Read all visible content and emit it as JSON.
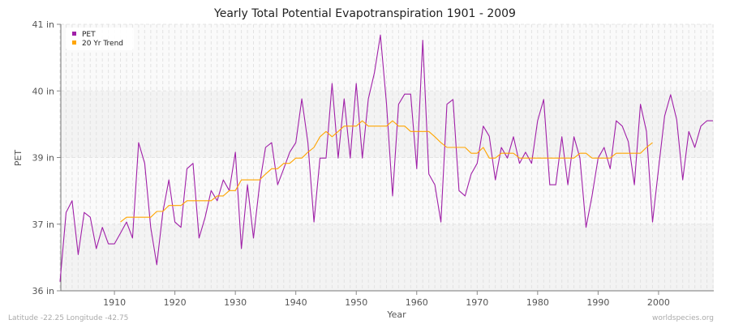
{
  "chart_data": {
    "type": "line",
    "title": "Yearly Total Potential Evapotranspiration 1901 - 2009",
    "xlabel": "Year",
    "ylabel": "PET",
    "xlim": [
      1901,
      2009
    ],
    "ylim": [
      36,
      41
    ],
    "x_ticks": [
      1910,
      1920,
      1930,
      1940,
      1950,
      1960,
      1970,
      1980,
      1990,
      2000
    ],
    "y_ticks": [
      {
        "value": 36,
        "label": "36 in"
      },
      {
        "value": 37.25,
        "label": "37 in"
      },
      {
        "value": 38.5,
        "label": "39 in"
      },
      {
        "value": 39.75,
        "label": "40 in"
      },
      {
        "value": 41,
        "label": "41 in"
      }
    ],
    "grid": true,
    "legend": "top-left",
    "series": [
      {
        "name": "PET",
        "color": "#a020a8",
        "x_start": 1901,
        "values": [
          36.17,
          37.47,
          37.69,
          36.68,
          37.47,
          37.38,
          36.79,
          37.19,
          36.88,
          36.88,
          37.08,
          37.29,
          36.99,
          38.78,
          38.39,
          37.19,
          36.49,
          37.47,
          38.08,
          37.29,
          37.19,
          38.29,
          38.39,
          36.99,
          37.38,
          37.88,
          37.69,
          38.08,
          37.88,
          38.6,
          36.79,
          37.99,
          36.99,
          37.99,
          38.69,
          38.78,
          37.99,
          38.29,
          38.6,
          38.78,
          39.6,
          38.78,
          37.29,
          38.49,
          38.49,
          39.89,
          38.49,
          39.6,
          38.49,
          39.89,
          38.49,
          39.6,
          40.09,
          40.8,
          39.51,
          37.78,
          39.5,
          39.69,
          39.69,
          38.29,
          40.7,
          38.19,
          37.99,
          37.29,
          39.5,
          39.59,
          37.88,
          37.78,
          38.19,
          38.39,
          39.09,
          38.9,
          38.08,
          38.69,
          38.49,
          38.89,
          38.39,
          38.6,
          38.39,
          39.19,
          39.59,
          37.99,
          37.99,
          38.89,
          37.99,
          38.89,
          38.49,
          37.19,
          37.78,
          38.49,
          38.69,
          38.29,
          39.19,
          39.09,
          38.8,
          37.99,
          39.5,
          38.99,
          37.29,
          38.29,
          39.28,
          39.68,
          39.21,
          38.08,
          38.99,
          38.69,
          39.09,
          39.19,
          39.19
        ]
      },
      {
        "name": "20 Yr Trend",
        "color": "#ffa500",
        "x_start": 1911,
        "values": [
          37.29,
          37.38,
          37.38,
          37.38,
          37.38,
          37.38,
          37.49,
          37.49,
          37.6,
          37.6,
          37.6,
          37.69,
          37.69,
          37.69,
          37.69,
          37.69,
          37.78,
          37.78,
          37.88,
          37.88,
          38.08,
          38.08,
          38.08,
          38.08,
          38.19,
          38.29,
          38.29,
          38.39,
          38.39,
          38.49,
          38.49,
          38.6,
          38.69,
          38.89,
          38.99,
          38.89,
          38.99,
          39.09,
          39.09,
          39.09,
          39.19,
          39.09,
          39.09,
          39.09,
          39.09,
          39.19,
          39.09,
          39.09,
          38.99,
          38.99,
          38.99,
          38.99,
          38.89,
          38.78,
          38.69,
          38.69,
          38.69,
          38.69,
          38.58,
          38.58,
          38.69,
          38.49,
          38.49,
          38.58,
          38.58,
          38.58,
          38.49,
          38.49,
          38.49,
          38.49,
          38.49,
          38.49,
          38.49,
          38.49,
          38.49,
          38.49,
          38.58,
          38.58,
          38.49,
          38.49,
          38.49,
          38.49,
          38.58,
          38.58,
          38.58,
          38.58,
          38.58,
          38.69,
          38.78
        ]
      }
    ]
  },
  "footer": {
    "location": "Latitude -22.25 Longitude -42.75",
    "source": "worldspecies.org"
  }
}
